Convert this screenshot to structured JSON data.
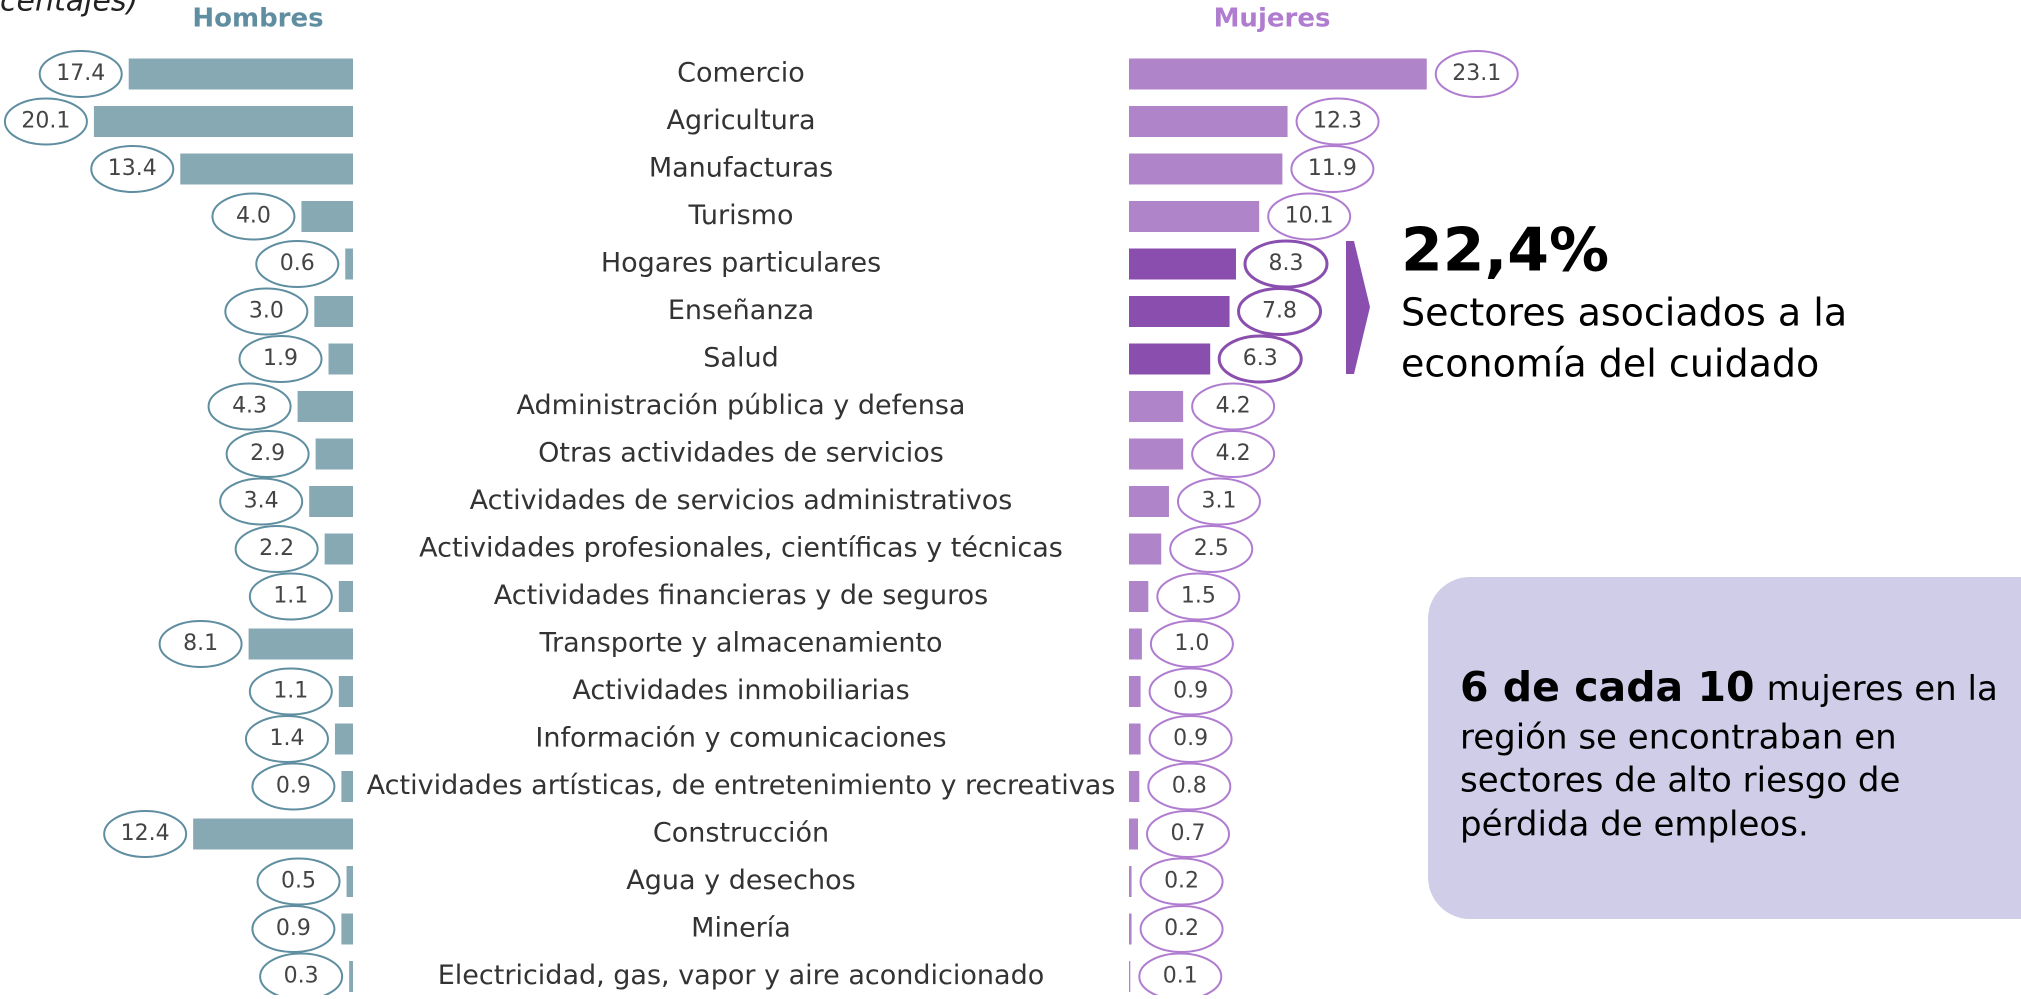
{
  "chart_data": {
    "type": "butterfly",
    "title_fragment": "centajes)",
    "categories": [
      "Comercio",
      "Agricultura",
      "Manufacturas",
      "Turismo",
      "Hogares particulares",
      "Enseñanza",
      "Salud",
      "Administración pública y defensa",
      "Otras actividades de servicios",
      "Actividades de servicios administrativos",
      "Actividades profesionales, científicas y técnicas",
      "Actividades financieras y de seguros",
      "Transporte y almacenamiento",
      "Actividades inmobiliarias",
      "Información y comunicaciones",
      "Actividades artísticas, de entretenimiento y recreativas",
      "Construcción",
      "Agua y desechos",
      "Minería",
      "Electricidad, gas, vapor y aire acondicionado"
    ],
    "series": [
      {
        "name": "Hombres",
        "color": "#87a9b4",
        "label_color": "#5f8ea0",
        "values": [
          17.4,
          20.1,
          13.4,
          4.0,
          0.6,
          3.0,
          1.9,
          4.3,
          2.9,
          3.4,
          2.2,
          1.1,
          8.1,
          1.1,
          1.4,
          0.9,
          12.4,
          0.5,
          0.9,
          0.3
        ],
        "value_labels": [
          "17.4",
          "20.1",
          "13.4",
          "4.0",
          "0.6",
          "3.0",
          "1.9",
          "4.3",
          "2.9",
          "3.4",
          "2.2",
          "1.1",
          "8.1",
          "1.1",
          "1.4",
          "0.9",
          "12.4",
          "0.5",
          "0.9",
          "0.3"
        ]
      },
      {
        "name": "Mujeres",
        "color": "#b084c9",
        "label_color": "#b07cd0",
        "colors": [
          "#b084c9",
          "#b084c9",
          "#b084c9",
          "#b084c9",
          "#8a4fae",
          "#8a4fae",
          "#8a4fae",
          "#b084c9",
          "#b084c9",
          "#b084c9",
          "#b084c9",
          "#b084c9",
          "#b084c9",
          "#b084c9",
          "#b084c9",
          "#b084c9",
          "#b084c9",
          "#b084c9",
          "#b084c9",
          "#b084c9"
        ],
        "values": [
          23.1,
          12.3,
          11.9,
          10.1,
          8.3,
          7.8,
          6.3,
          4.2,
          4.2,
          3.1,
          2.5,
          1.5,
          1.0,
          0.9,
          0.9,
          0.8,
          0.7,
          0.2,
          0.2,
          0.1
        ],
        "value_labels": [
          "23.1",
          "12.3",
          "11.9",
          "10.1",
          "8.3",
          "7.8",
          "6.3",
          "4.2",
          "4.2",
          "3.1",
          "2.5",
          "1.5",
          "1.0",
          "0.9",
          "0.9",
          "0.8",
          "0.7",
          "0.2",
          "0.2",
          "0.1"
        ]
      }
    ],
    "annotation": {
      "value": "22,4%",
      "lines": [
        "Sectores asociados a la",
        "economía del cuidado"
      ],
      "color": "#8a4fae"
    },
    "callout": {
      "bold": "6 de cada 10",
      "lines": [
        "mujeres en la",
        "región se encontraban en",
        "sectores de alto riesgo de",
        "pérdida de empleos."
      ],
      "color": "#cfcde8"
    }
  }
}
